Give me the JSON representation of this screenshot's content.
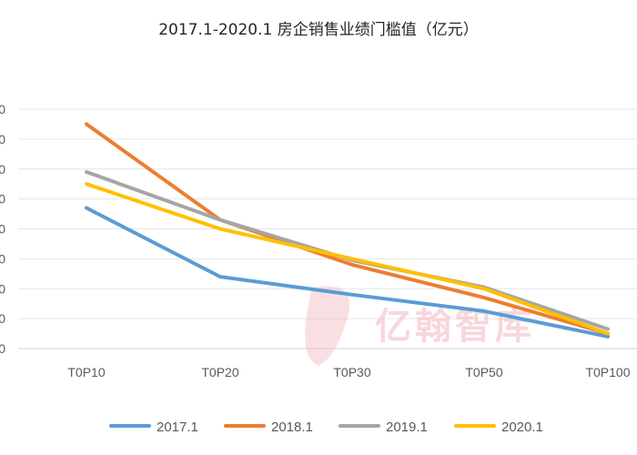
{
  "chart_data": {
    "type": "line",
    "title": "2017.1-2020.1 房企销售业绩门槛值（亿元）",
    "categories": [
      "T0P10",
      "T0P20",
      "T0P30",
      "T0P50",
      "T0P100"
    ],
    "series": [
      {
        "name": "2017.1",
        "color": "#5b9bd5",
        "values": [
          47,
          24,
          18,
          12.5,
          4
        ]
      },
      {
        "name": "2018.1",
        "color": "#ed7d31",
        "values": [
          75,
          43,
          28,
          17,
          5
        ]
      },
      {
        "name": "2019.1",
        "color": "#a5a5a5",
        "values": [
          59,
          43,
          29.5,
          20.5,
          6.5
        ]
      },
      {
        "name": "2020.1",
        "color": "#ffc000",
        "values": [
          55,
          40,
          30,
          20,
          5
        ]
      }
    ],
    "ylim": [
      0,
      80
    ],
    "ytick_step": 10,
    "ytick_labels": [
      "0",
      "0",
      "0",
      "0",
      "0",
      "0",
      "0",
      "0",
      "0"
    ],
    "grid": "horizontal",
    "legend": "bottom"
  },
  "watermark": {
    "text": "亿翰智库"
  }
}
